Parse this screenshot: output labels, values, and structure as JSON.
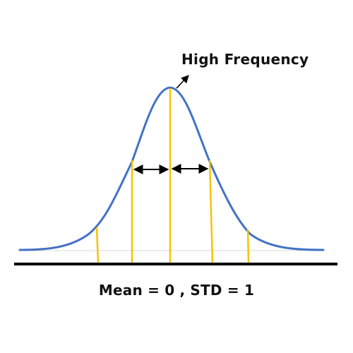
{
  "annotations": {
    "peak_label": "High Frequency",
    "caption": "Mean = 0 ,  STD = 1"
  },
  "colors": {
    "curve": "#4472C4",
    "markers": "#F5C400",
    "axis": "#000000",
    "baseline": "#d9d9d9",
    "arrows": "#000000",
    "text": "#111111"
  }
}
